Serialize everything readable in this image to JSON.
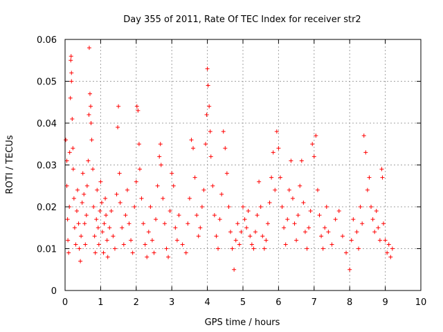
{
  "chart_data": {
    "type": "scatter",
    "title": "Day 355 of 2011, Rate Of TEC Index for receiver str2",
    "xlabel": "GPS time / hours",
    "ylabel": "ROTI / TECUs",
    "xlim": [
      0,
      10
    ],
    "ylim": [
      0,
      0.06
    ],
    "x_ticks": [
      0,
      1,
      2,
      3,
      4,
      5,
      6,
      7,
      8,
      9,
      10
    ],
    "y_ticks": [
      0,
      0.01,
      0.02,
      0.03,
      0.04,
      0.05,
      0.06
    ],
    "x_tick_labels": [
      "0",
      "1",
      "2",
      "3",
      "4",
      "5",
      "6",
      "7",
      "8",
      "9",
      "10"
    ],
    "y_tick_labels": [
      "0",
      "0.01",
      "0.02",
      "0.03",
      "0.04",
      "0.05",
      "0.06"
    ],
    "grid": true,
    "marker": "+",
    "color": "#ff0000",
    "series": [
      {
        "name": "ROTI",
        "points": [
          [
            0.02,
            0.036
          ],
          [
            0.05,
            0.031
          ],
          [
            0.05,
            0.025
          ],
          [
            0.07,
            0.017
          ],
          [
            0.08,
            0.012
          ],
          [
            0.1,
            0.009
          ],
          [
            0.12,
            0.02
          ],
          [
            0.13,
            0.033
          ],
          [
            0.15,
            0.046
          ],
          [
            0.16,
            0.055
          ],
          [
            0.17,
            0.056
          ],
          [
            0.18,
            0.052
          ],
          [
            0.18,
            0.05
          ],
          [
            0.2,
            0.041
          ],
          [
            0.22,
            0.034
          ],
          [
            0.23,
            0.029
          ],
          [
            0.25,
            0.022
          ],
          [
            0.27,
            0.015
          ],
          [
            0.3,
            0.011
          ],
          [
            0.33,
            0.019
          ],
          [
            0.35,
            0.024
          ],
          [
            0.38,
            0.016
          ],
          [
            0.4,
            0.01
          ],
          [
            0.43,
            0.007
          ],
          [
            0.45,
            0.013
          ],
          [
            0.48,
            0.021
          ],
          [
            0.5,
            0.028
          ],
          [
            0.53,
            0.023
          ],
          [
            0.55,
            0.016
          ],
          [
            0.57,
            0.011
          ],
          [
            0.6,
            0.018
          ],
          [
            0.62,
            0.025
          ],
          [
            0.65,
            0.031
          ],
          [
            0.67,
            0.042
          ],
          [
            0.68,
            0.058
          ],
          [
            0.7,
            0.047
          ],
          [
            0.72,
            0.044
          ],
          [
            0.73,
            0.04
          ],
          [
            0.75,
            0.036
          ],
          [
            0.78,
            0.029
          ],
          [
            0.8,
            0.02
          ],
          [
            0.83,
            0.013
          ],
          [
            0.85,
            0.009
          ],
          [
            0.88,
            0.017
          ],
          [
            0.9,
            0.024
          ],
          [
            0.93,
            0.015
          ],
          [
            0.95,
            0.011
          ],
          [
            0.98,
            0.019
          ],
          [
            1.0,
            0.026
          ],
          [
            1.03,
            0.021
          ],
          [
            1.05,
            0.014
          ],
          [
            1.08,
            0.009
          ],
          [
            1.1,
            0.016
          ],
          [
            1.13,
            0.022
          ],
          [
            1.15,
            0.018
          ],
          [
            1.18,
            0.012
          ],
          [
            1.2,
            0.008
          ],
          [
            1.25,
            0.015
          ],
          [
            1.3,
            0.019
          ],
          [
            1.35,
            0.013
          ],
          [
            1.4,
            0.01
          ],
          [
            1.45,
            0.023
          ],
          [
            1.48,
            0.039
          ],
          [
            1.5,
            0.044
          ],
          [
            1.53,
            0.028
          ],
          [
            1.55,
            0.021
          ],
          [
            1.6,
            0.015
          ],
          [
            1.65,
            0.011
          ],
          [
            1.7,
            0.018
          ],
          [
            1.75,
            0.024
          ],
          [
            1.8,
            0.016
          ],
          [
            1.85,
            0.012
          ],
          [
            1.9,
            0.009
          ],
          [
            1.95,
            0.02
          ],
          [
            2.0,
            0.026
          ],
          [
            2.02,
            0.044
          ],
          [
            2.05,
            0.043
          ],
          [
            2.08,
            0.035
          ],
          [
            2.1,
            0.029
          ],
          [
            2.15,
            0.022
          ],
          [
            2.2,
            0.016
          ],
          [
            2.25,
            0.011
          ],
          [
            2.3,
            0.008
          ],
          [
            2.35,
            0.014
          ],
          [
            2.4,
            0.02
          ],
          [
            2.45,
            0.012
          ],
          [
            2.5,
            0.009
          ],
          [
            2.55,
            0.017
          ],
          [
            2.6,
            0.025
          ],
          [
            2.65,
            0.032
          ],
          [
            2.68,
            0.035
          ],
          [
            2.7,
            0.03
          ],
          [
            2.75,
            0.022
          ],
          [
            2.8,
            0.016
          ],
          [
            2.85,
            0.01
          ],
          [
            2.9,
            0.008
          ],
          [
            2.95,
            0.019
          ],
          [
            3.0,
            0.028
          ],
          [
            3.05,
            0.025
          ],
          [
            3.1,
            0.015
          ],
          [
            3.15,
            0.012
          ],
          [
            3.2,
            0.018
          ],
          [
            3.3,
            0.011
          ],
          [
            3.4,
            0.009
          ],
          [
            3.45,
            0.016
          ],
          [
            3.5,
            0.022
          ],
          [
            3.55,
            0.036
          ],
          [
            3.6,
            0.034
          ],
          [
            3.65,
            0.027
          ],
          [
            3.7,
            0.018
          ],
          [
            3.75,
            0.013
          ],
          [
            3.8,
            0.015
          ],
          [
            3.85,
            0.02
          ],
          [
            3.9,
            0.024
          ],
          [
            3.95,
            0.035
          ],
          [
            3.98,
            0.042
          ],
          [
            4.0,
            0.053
          ],
          [
            4.02,
            0.049
          ],
          [
            4.05,
            0.044
          ],
          [
            4.08,
            0.038
          ],
          [
            4.1,
            0.032
          ],
          [
            4.15,
            0.025
          ],
          [
            4.2,
            0.018
          ],
          [
            4.25,
            0.013
          ],
          [
            4.3,
            0.01
          ],
          [
            4.35,
            0.017
          ],
          [
            4.4,
            0.023
          ],
          [
            4.45,
            0.038
          ],
          [
            4.5,
            0.034
          ],
          [
            4.55,
            0.028
          ],
          [
            4.6,
            0.02
          ],
          [
            4.65,
            0.014
          ],
          [
            4.7,
            0.01
          ],
          [
            4.75,
            0.005
          ],
          [
            4.8,
            0.012
          ],
          [
            4.85,
            0.016
          ],
          [
            4.9,
            0.011
          ],
          [
            4.95,
            0.014
          ],
          [
            5.0,
            0.02
          ],
          [
            5.05,
            0.017
          ],
          [
            5.1,
            0.015
          ],
          [
            5.15,
            0.019
          ],
          [
            5.2,
            0.013
          ],
          [
            5.25,
            0.011
          ],
          [
            5.3,
            0.01
          ],
          [
            5.35,
            0.014
          ],
          [
            5.4,
            0.018
          ],
          [
            5.45,
            0.026
          ],
          [
            5.5,
            0.02
          ],
          [
            5.55,
            0.013
          ],
          [
            5.6,
            0.01
          ],
          [
            5.65,
            0.012
          ],
          [
            5.7,
            0.016
          ],
          [
            5.75,
            0.021
          ],
          [
            5.8,
            0.027
          ],
          [
            5.85,
            0.033
          ],
          [
            5.9,
            0.024
          ],
          [
            5.95,
            0.038
          ],
          [
            6.0,
            0.034
          ],
          [
            6.05,
            0.027
          ],
          [
            6.1,
            0.02
          ],
          [
            6.15,
            0.015
          ],
          [
            6.2,
            0.011
          ],
          [
            6.25,
            0.017
          ],
          [
            6.3,
            0.024
          ],
          [
            6.35,
            0.031
          ],
          [
            6.4,
            0.022
          ],
          [
            6.45,
            0.016
          ],
          [
            6.5,
            0.012
          ],
          [
            6.55,
            0.018
          ],
          [
            6.6,
            0.025
          ],
          [
            6.65,
            0.031
          ],
          [
            6.7,
            0.021
          ],
          [
            6.75,
            0.014
          ],
          [
            6.8,
            0.01
          ],
          [
            6.85,
            0.015
          ],
          [
            6.9,
            0.019
          ],
          [
            6.95,
            0.035
          ],
          [
            7.0,
            0.032
          ],
          [
            7.05,
            0.037
          ],
          [
            7.1,
            0.024
          ],
          [
            7.15,
            0.018
          ],
          [
            7.2,
            0.013
          ],
          [
            7.25,
            0.01
          ],
          [
            7.3,
            0.015
          ],
          [
            7.35,
            0.02
          ],
          [
            7.4,
            0.014
          ],
          [
            7.5,
            0.011
          ],
          [
            7.6,
            0.017
          ],
          [
            7.7,
            0.019
          ],
          [
            7.8,
            0.013
          ],
          [
            7.9,
            0.009
          ],
          [
            8.0,
            0.005
          ],
          [
            8.05,
            0.012
          ],
          [
            8.1,
            0.017
          ],
          [
            8.2,
            0.014
          ],
          [
            8.25,
            0.01
          ],
          [
            8.3,
            0.02
          ],
          [
            8.35,
            0.016
          ],
          [
            8.4,
            0.037
          ],
          [
            8.45,
            0.033
          ],
          [
            8.5,
            0.024
          ],
          [
            8.55,
            0.027
          ],
          [
            8.6,
            0.02
          ],
          [
            8.65,
            0.017
          ],
          [
            8.7,
            0.014
          ],
          [
            8.75,
            0.019
          ],
          [
            8.8,
            0.015
          ],
          [
            8.85,
            0.012
          ],
          [
            8.9,
            0.029
          ],
          [
            8.92,
            0.027
          ],
          [
            8.95,
            0.016
          ],
          [
            9.0,
            0.012
          ],
          [
            9.05,
            0.009
          ],
          [
            9.1,
            0.011
          ],
          [
            9.15,
            0.008
          ],
          [
            9.2,
            0.01
          ]
        ]
      }
    ]
  }
}
